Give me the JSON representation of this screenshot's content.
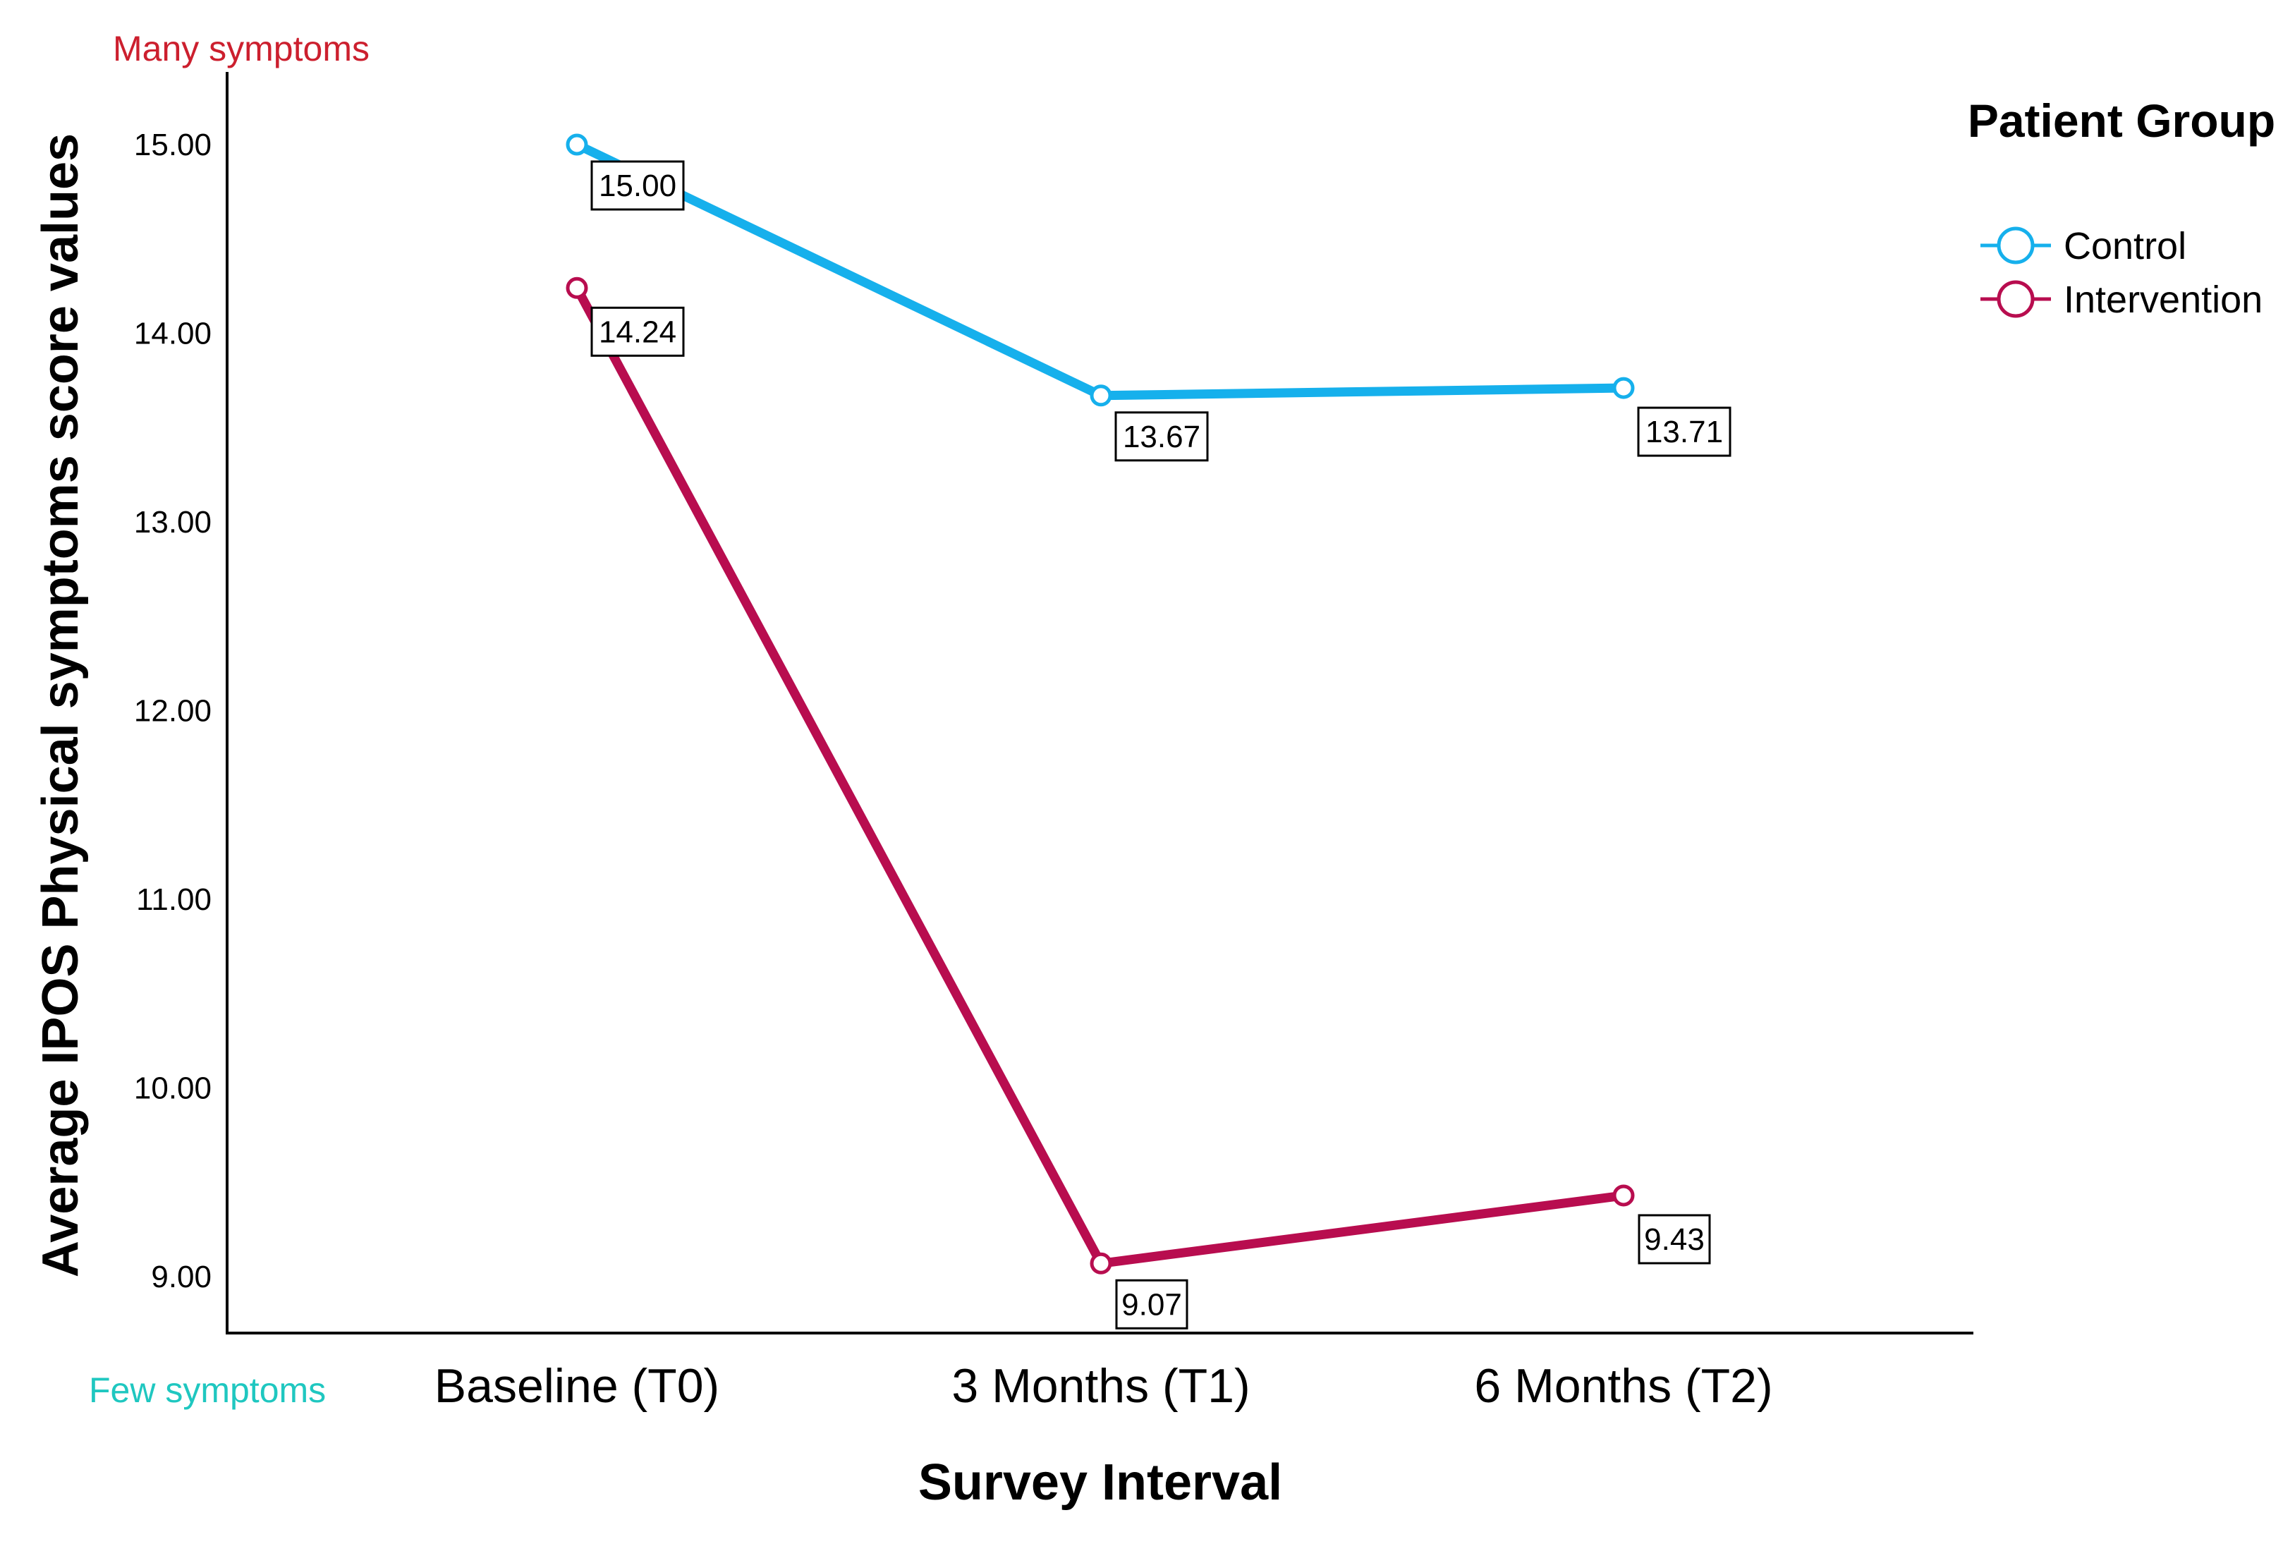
{
  "chart_data": {
    "type": "line",
    "xlabel": "Survey Interval",
    "ylabel": "Average IPOS Physical symptoms score values",
    "categories": [
      "Baseline (T0)",
      "3 Months (T1)",
      "6 Months (T2)"
    ],
    "yticks": [
      "9.00",
      "10.00",
      "11.00",
      "12.00",
      "13.00",
      "14.00",
      "15.00"
    ],
    "ylim": [
      8.7,
      15.35
    ],
    "grid": false,
    "legend": {
      "title": "Patient Group",
      "placement": "right"
    },
    "annotations": {
      "top": "Many symptoms",
      "bottom": "Few symptoms",
      "top_color": "#cc1f2e",
      "bottom_color": "#1fc7c0"
    },
    "series": [
      {
        "name": "Control",
        "color": "#16b0ec",
        "values": [
          15.0,
          13.67,
          13.71
        ],
        "labels": [
          "15.00",
          "13.67",
          "13.71"
        ]
      },
      {
        "name": "Intervention",
        "color": "#b80d4f",
        "values": [
          14.24,
          9.07,
          9.43
        ],
        "labels": [
          "14.24",
          "9.07",
          "9.43"
        ]
      }
    ]
  }
}
